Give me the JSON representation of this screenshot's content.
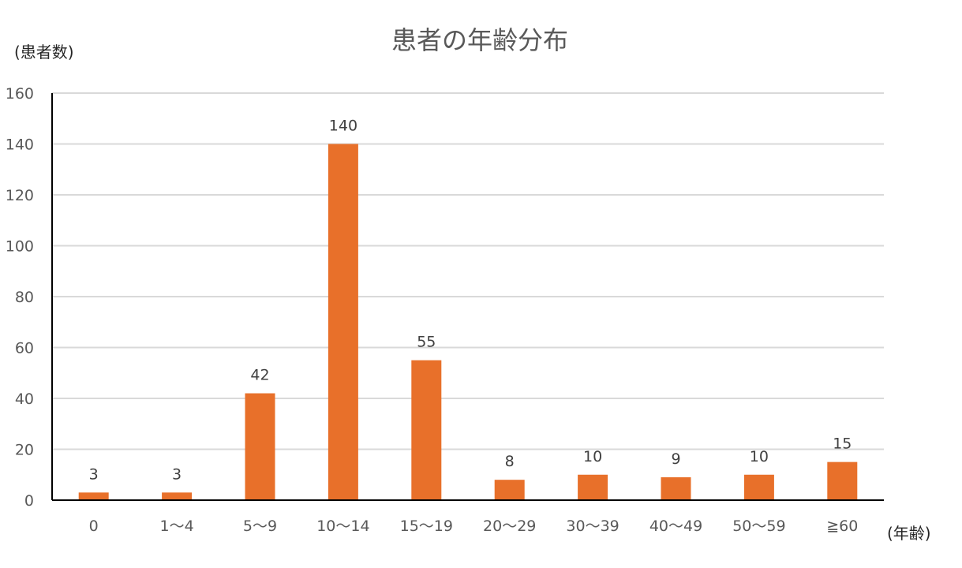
{
  "chart_data": {
    "type": "bar",
    "title": "患者の年齢分布",
    "ylabel": "(患者数)",
    "xlabel": "(年齢)",
    "categories": [
      "0",
      "1～4",
      "5～9",
      "10～14",
      "15～19",
      "20～29",
      "30～39",
      "40～49",
      "50～59",
      "≧60"
    ],
    "values": [
      3,
      3,
      42,
      140,
      55,
      8,
      10,
      9,
      10,
      15
    ],
    "ylim": [
      0,
      160
    ],
    "yticks": [
      "0",
      "20",
      "40",
      "60",
      "80",
      "100",
      "120",
      "140",
      "160"
    ],
    "grid": true,
    "data_labels": true,
    "bar_color": "#E8702A"
  }
}
